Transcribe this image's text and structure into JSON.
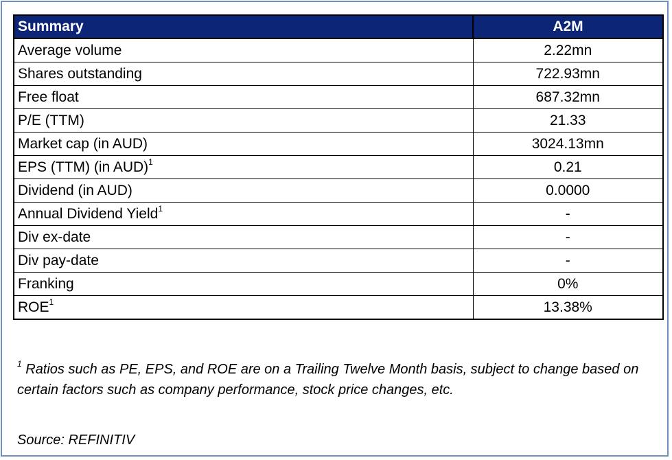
{
  "table": {
    "header": {
      "label": "Summary",
      "value": "A2M"
    },
    "rows": [
      {
        "label": "Average volume",
        "sup": "",
        "value": "2.22mn"
      },
      {
        "label": "Shares outstanding",
        "sup": "",
        "value": "722.93mn"
      },
      {
        "label": "Free float",
        "sup": "",
        "value": "687.32mn"
      },
      {
        "label": "P/E (TTM)",
        "sup": "",
        "value": "21.33"
      },
      {
        "label": "Market cap (in AUD)",
        "sup": "",
        "value": "3024.13mn"
      },
      {
        "label": "EPS (TTM) (in AUD)",
        "sup": "1",
        "value": "0.21"
      },
      {
        "label": "Dividend (in AUD)",
        "sup": "",
        "value": "0.0000"
      },
      {
        "label": "Annual Dividend Yield",
        "sup": "1",
        "value": "-"
      },
      {
        "label": "Div ex-date",
        "sup": "",
        "value": "-"
      },
      {
        "label": "Div pay-date",
        "sup": "",
        "value": "-"
      },
      {
        "label": "Franking",
        "sup": "",
        "value": "0%"
      },
      {
        "label": "ROE",
        "sup": "1",
        "value": "13.38%"
      }
    ]
  },
  "footnote": {
    "marker": "1",
    "text": " Ratios such as PE, EPS, and ROE are on a Trailing Twelve Month basis, subject to change based on certain factors such as company performance, stock price changes, etc."
  },
  "source": "Source: REFINITIV",
  "colors": {
    "header_bg": "#0c2577",
    "header_text": "#ffffff",
    "frame_border": "#6f8fc0"
  }
}
